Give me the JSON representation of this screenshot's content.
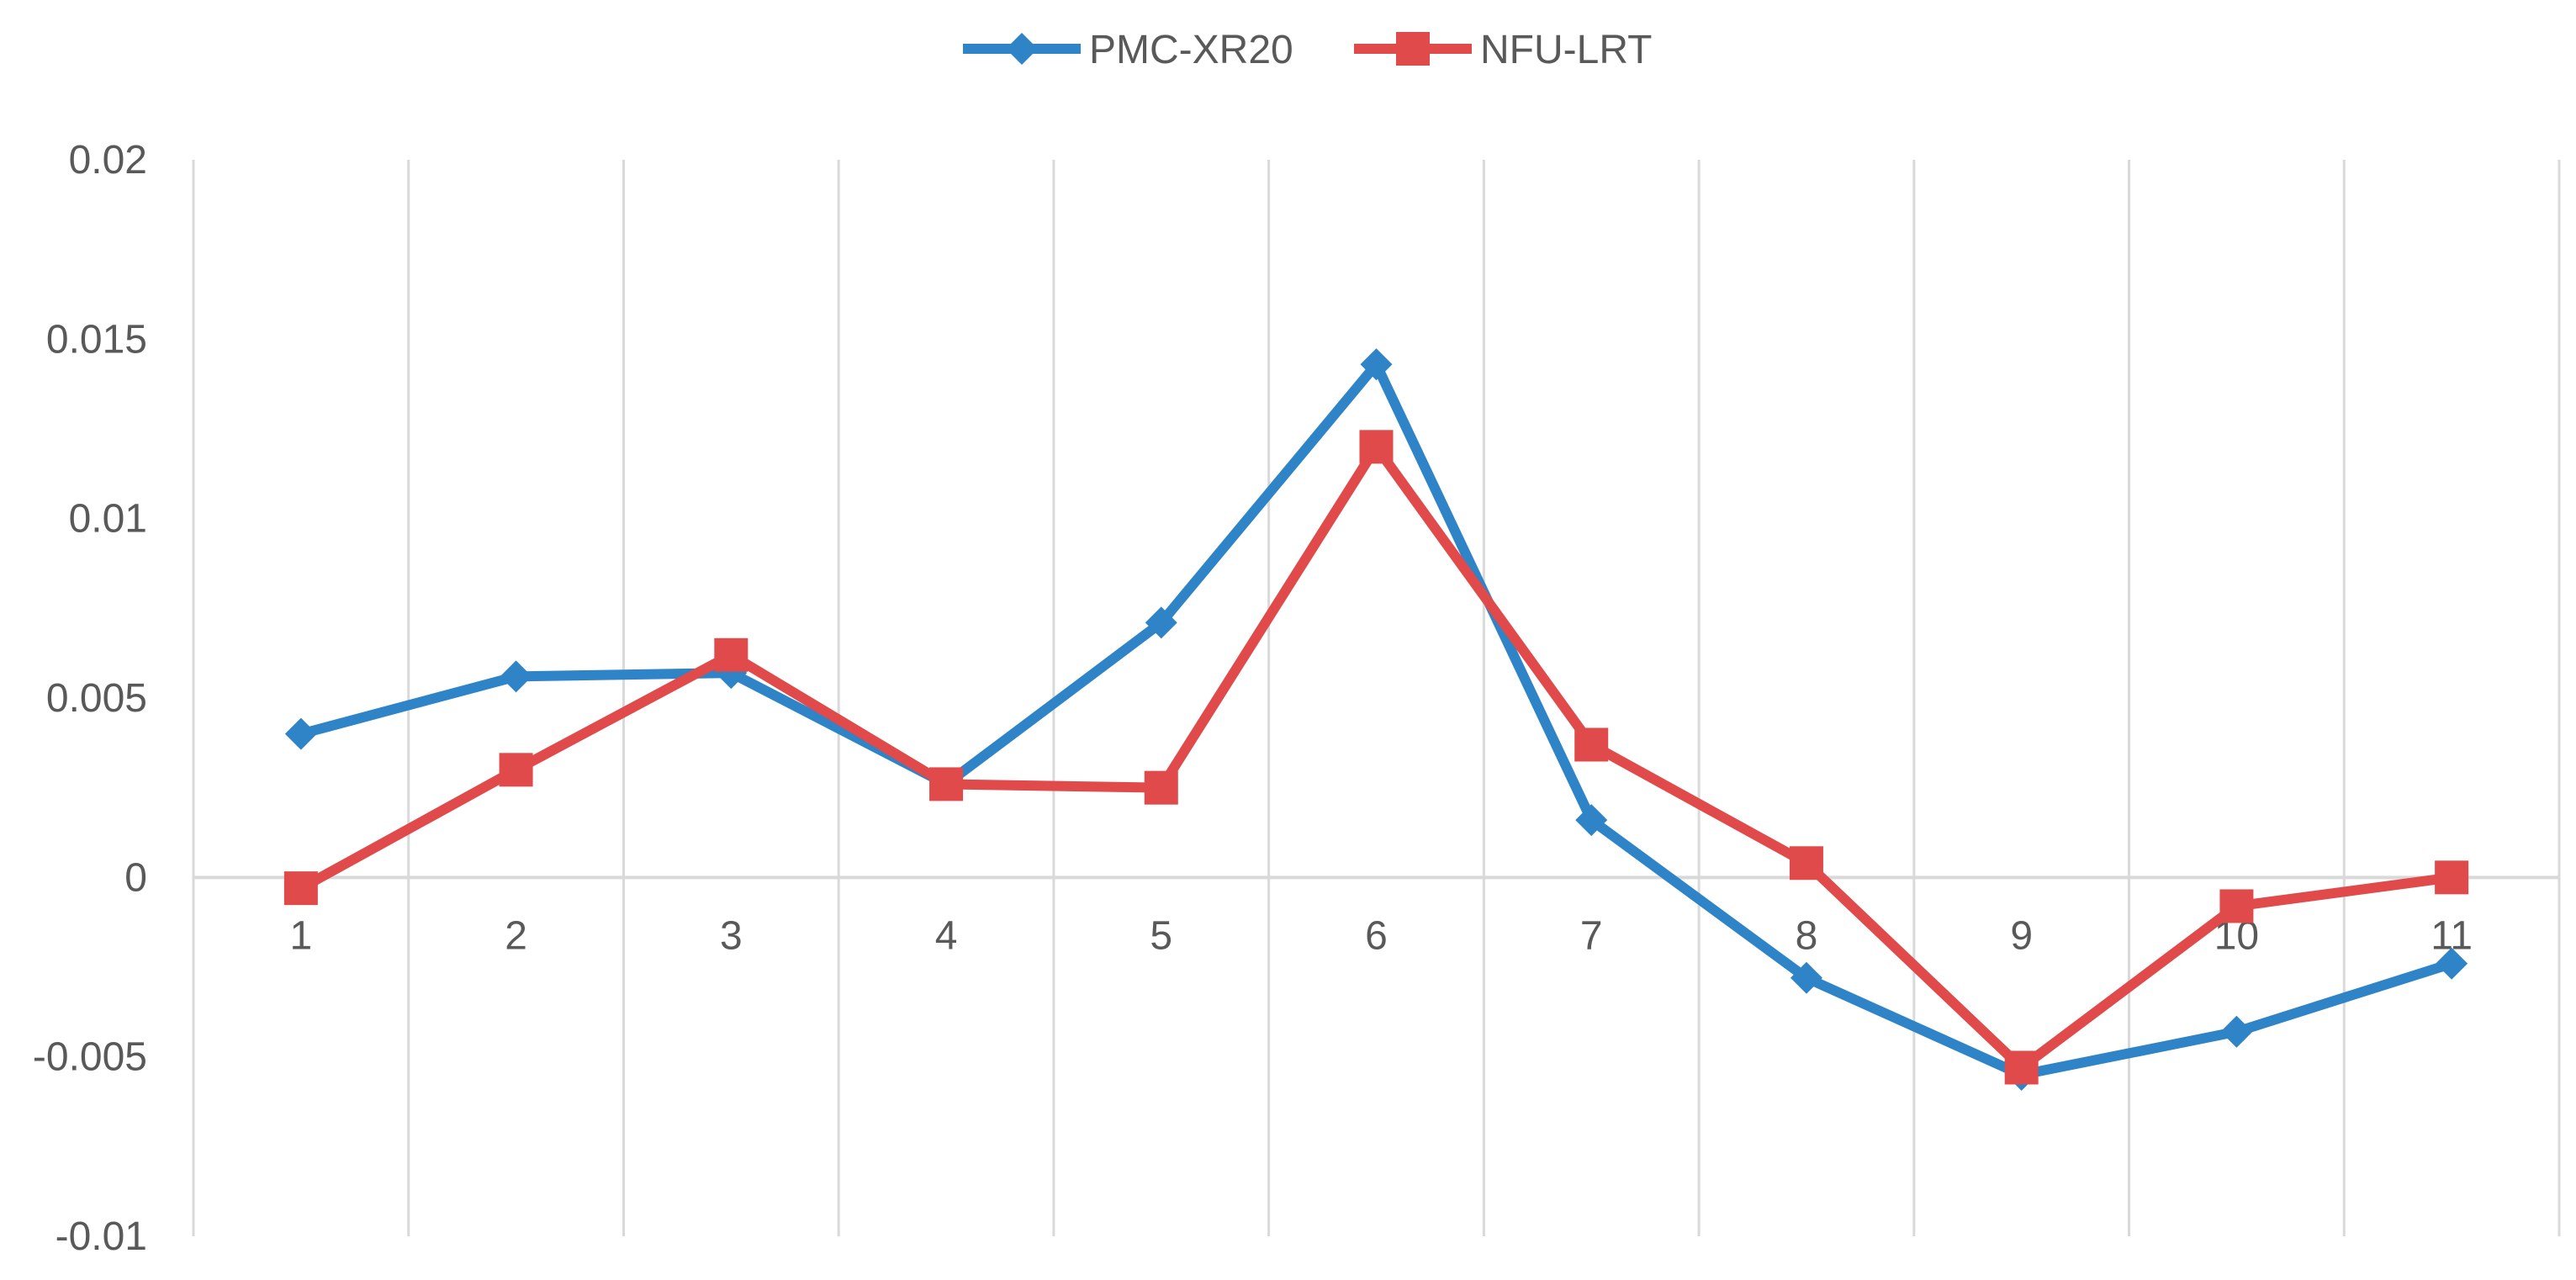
{
  "chart_data": {
    "type": "line",
    "title": "",
    "xlabel": "",
    "ylabel": "",
    "categories": [
      "1",
      "2",
      "3",
      "4",
      "5",
      "6",
      "7",
      "8",
      "9",
      "10",
      "11"
    ],
    "ylim": [
      -0.01,
      0.02
    ],
    "yticks": [
      0.02,
      0.015,
      0.01,
      0.005,
      0,
      -0.005,
      -0.01
    ],
    "ytick_labels": [
      "0.02",
      "0.015",
      "0.01",
      "0.005",
      "0",
      "-0.005",
      "-0.01"
    ],
    "grid": "vertical",
    "legend_position": "top-center",
    "series": [
      {
        "name": "PMC-XR20",
        "color": "#2e84c6",
        "marker": "diamond",
        "values": [
          0.004,
          0.0056,
          0.0057,
          0.0026,
          0.0071,
          0.0143,
          0.0016,
          -0.0028,
          -0.0055,
          -0.0043,
          -0.0024
        ]
      },
      {
        "name": "NFU-LRT",
        "color": "#e04a4a",
        "marker": "square",
        "values": [
          -0.0003,
          0.003,
          0.0062,
          0.0026,
          0.0025,
          0.012,
          0.0037,
          0.0004,
          -0.0053,
          -0.0008,
          0.0
        ]
      }
    ]
  }
}
